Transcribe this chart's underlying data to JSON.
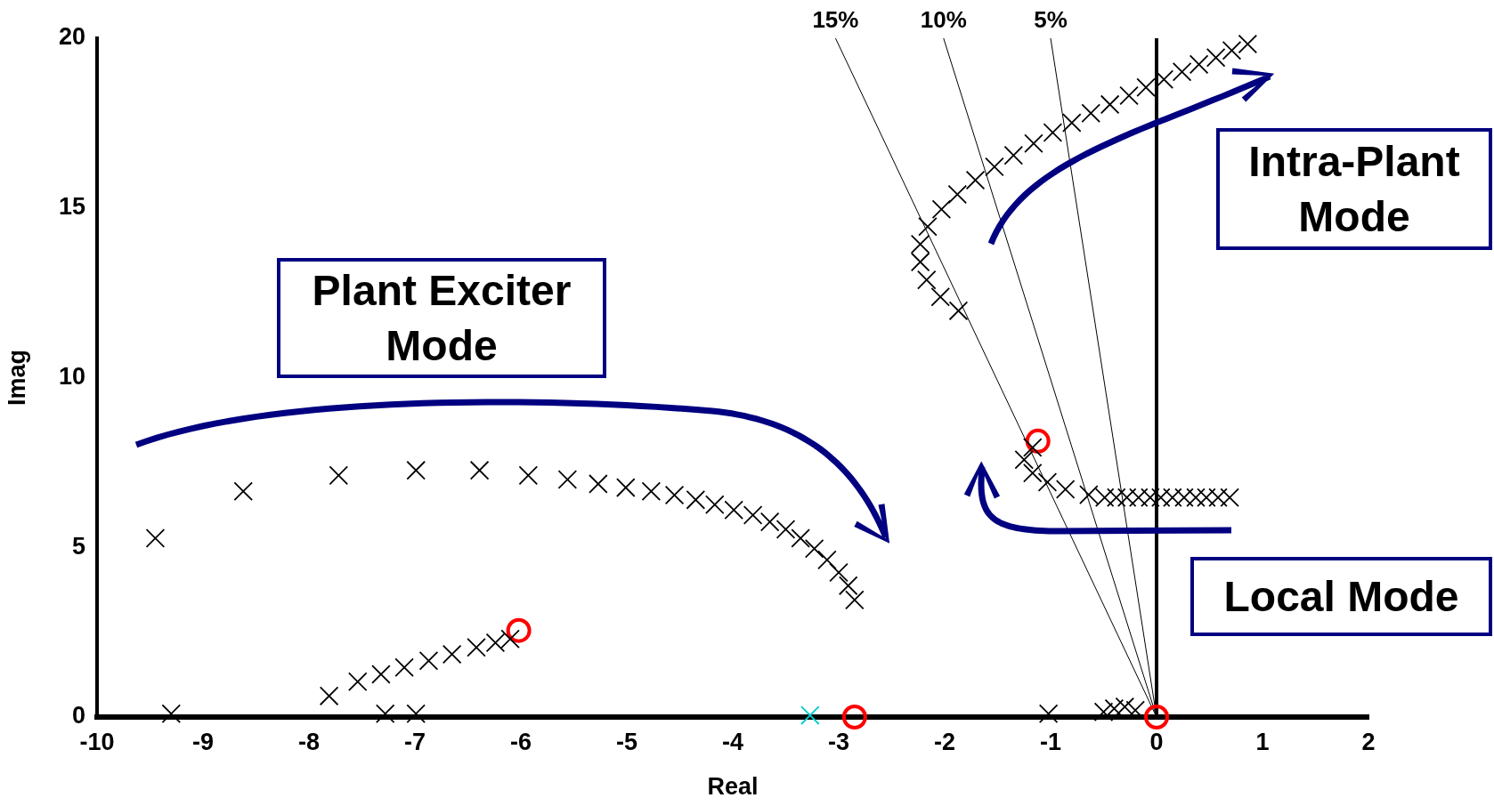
{
  "chart_data": {
    "type": "scatter",
    "xlabel": "Real",
    "ylabel": "Imag",
    "xlim": [
      -10,
      2
    ],
    "xticks": [
      -10,
      -9,
      -8,
      -7,
      -6,
      -5,
      -4,
      -3,
      -2,
      -1,
      0,
      1,
      2
    ],
    "ylim": [
      0,
      20
    ],
    "yticks": [
      0,
      5,
      10,
      15,
      20
    ],
    "grid": false,
    "legend": false,
    "annotations": [
      "Plant Exciter Mode",
      "Intra-Plant Mode",
      "Local Mode"
    ],
    "ref_lines": [
      {
        "axis": "x",
        "value": 0,
        "label": null,
        "color": "#000000"
      }
    ],
    "series": [
      {
        "type": "scatter",
        "color": "#000000",
        "marker": "cross",
        "x": [
          -9.45,
          -8.62,
          -7.72,
          -6.99,
          -6.39,
          -5.93,
          -5.56,
          -5.27,
          -5.01,
          -4.77,
          -4.55,
          -4.35,
          -4.17,
          -3.99,
          -3.81,
          -3.65,
          -3.5,
          -3.36,
          -3.23,
          -3.11,
          -3.0,
          -2.91,
          -2.85
        ],
        "values": [
          5.27,
          6.65,
          7.12,
          7.27,
          7.27,
          7.12,
          7.0,
          6.87,
          6.76,
          6.65,
          6.54,
          6.4,
          6.26,
          6.1,
          5.95,
          5.75,
          5.53,
          5.27,
          4.96,
          4.63,
          4.26,
          3.87,
          3.45
        ]
      },
      {
        "type": "scatter",
        "color": "#000000",
        "marker": "cross",
        "x": [
          -7.81,
          -7.54,
          -7.32,
          -7.1,
          -6.87,
          -6.65,
          -6.42,
          -6.24,
          -6.1
        ],
        "values": [
          0.62,
          1.04,
          1.26,
          1.46,
          1.66,
          1.85,
          2.05,
          2.19,
          2.3
        ]
      },
      {
        "type": "scatter",
        "color": "#000000",
        "marker": "cross",
        "x": [
          -9.3,
          -7.28,
          -6.99,
          -1.02,
          -0.5,
          -0.4,
          -0.3,
          -0.2
        ],
        "values": [
          0.1,
          0.1,
          0.1,
          0.1,
          0.15,
          0.25,
          0.3,
          0.2
        ]
      },
      {
        "type": "scatter",
        "color": "#00cccc",
        "marker": "cross",
        "x": [
          -3.27
        ],
        "values": [
          0.05
        ]
      },
      {
        "type": "scatter",
        "color": "#000000",
        "marker": "cross",
        "x": [
          -1.87,
          -2.04,
          -2.17,
          -2.23,
          -2.23,
          -2.16,
          -2.03,
          -1.88,
          -1.71,
          -1.53,
          -1.35,
          -1.16,
          -0.98,
          -0.8,
          -0.62,
          -0.44,
          -0.26,
          -0.1,
          0.07,
          0.24,
          0.4,
          0.56,
          0.71,
          0.86
        ],
        "values": [
          11.97,
          12.38,
          12.88,
          13.41,
          13.93,
          14.45,
          14.96,
          15.4,
          15.82,
          16.21,
          16.55,
          16.9,
          17.22,
          17.51,
          17.79,
          18.05,
          18.31,
          18.55,
          18.79,
          19.01,
          19.23,
          19.43,
          19.64,
          19.83
        ]
      },
      {
        "type": "scatter",
        "color": "#000000",
        "marker": "cross",
        "x": [
          0.69,
          0.58,
          0.47,
          0.37,
          0.26,
          0.15,
          0.04,
          -0.06,
          -0.17,
          -0.28,
          -0.38,
          -0.49,
          -0.64,
          -0.86,
          -1.03,
          -1.17,
          -1.25,
          -1.17
        ],
        "values": [
          6.47,
          6.47,
          6.47,
          6.47,
          6.47,
          6.47,
          6.47,
          6.47,
          6.47,
          6.47,
          6.47,
          6.47,
          6.55,
          6.71,
          6.92,
          7.19,
          7.58,
          7.94
        ]
      },
      {
        "type": "scatter",
        "color": "#ff0000",
        "marker": "circle",
        "x": [
          -6.02,
          -2.85,
          0,
          -1.12
        ],
        "values": [
          2.55,
          0,
          0,
          8.13
        ]
      },
      {
        "type": "line",
        "name": "15%",
        "color": "#000000",
        "marker": "none",
        "x": [
          0,
          -3.03
        ],
        "values": [
          0,
          20
        ]
      },
      {
        "type": "line",
        "name": "10%",
        "color": "#000000",
        "marker": "none",
        "x": [
          0,
          -2.01
        ],
        "values": [
          0,
          20
        ]
      },
      {
        "type": "line",
        "name": "5%",
        "color": "#000000",
        "marker": "none",
        "x": [
          0,
          -1.0
        ],
        "values": [
          0,
          20
        ]
      }
    ]
  }
}
